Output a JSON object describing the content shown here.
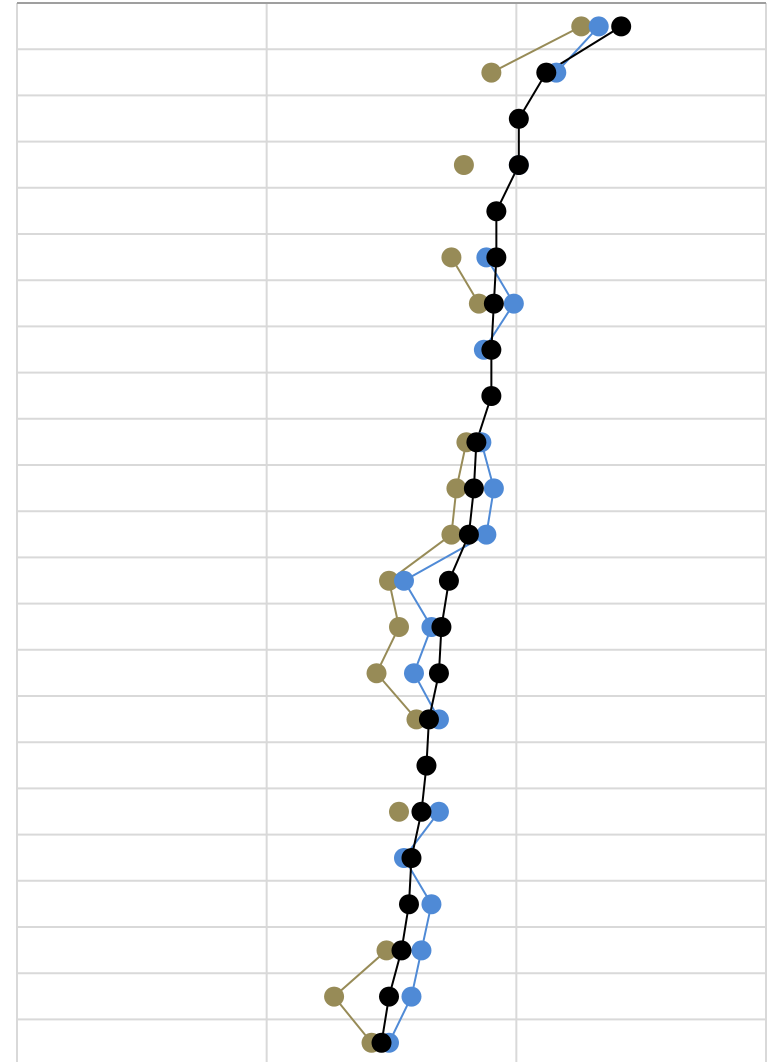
{
  "chart_data": {
    "type": "line",
    "orientation": "vertical-categories",
    "title": "",
    "xlabel": "",
    "ylabel": "",
    "xlim": [
      0,
      3
    ],
    "grid": true,
    "legend": "none",
    "rows": 23,
    "series": [
      {
        "color": "#000000",
        "values": [
          2.42,
          2.12,
          2.01,
          2.01,
          1.92,
          1.92,
          1.91,
          1.9,
          1.9,
          1.84,
          1.83,
          1.81,
          1.73,
          1.7,
          1.69,
          1.65,
          1.64,
          1.62,
          1.58,
          1.57,
          1.54,
          1.49,
          1.46
        ],
        "gaps": []
      },
      {
        "color": "#4F8AD6",
        "values": [
          2.33,
          2.16,
          null,
          2.01,
          null,
          1.88,
          1.99,
          1.87,
          null,
          1.86,
          1.91,
          1.88,
          1.55,
          1.66,
          1.59,
          1.69,
          null,
          1.69,
          1.55,
          1.66,
          1.62,
          1.58,
          1.49
        ],
        "gaps": []
      },
      {
        "color": "#978B57",
        "values": [
          2.26,
          1.9,
          null,
          1.79,
          null,
          1.74,
          1.85,
          null,
          null,
          1.8,
          1.76,
          1.74,
          1.49,
          1.53,
          1.44,
          1.6,
          null,
          1.53,
          null,
          null,
          1.48,
          1.27,
          1.42
        ],
        "gaps": [
          3
        ]
      }
    ]
  }
}
